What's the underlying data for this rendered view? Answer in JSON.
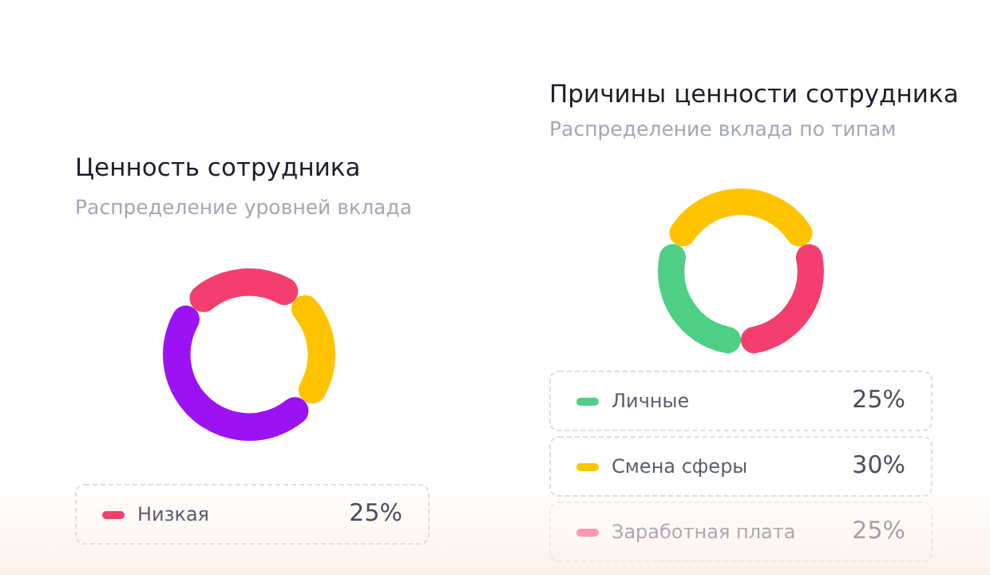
{
  "chart_data": [
    {
      "type": "donut",
      "title": "Ценность сотрудника",
      "subtitle": "Распределение уровней вклада",
      "categories": [
        "Низкая",
        null,
        null
      ],
      "values": [
        25,
        25,
        50
      ],
      "colors": [
        "#f43f6e",
        "#ffc300",
        "#9b12f5"
      ],
      "value_labels": [
        "25%",
        null,
        null
      ],
      "legend": "bottom"
    },
    {
      "type": "donut",
      "title": "Причины ценности сотрудника",
      "subtitle": "Распределение вклада по типам",
      "categories": [
        "Личные",
        "Смена сферы",
        "Заработная плата"
      ],
      "values": [
        25,
        30,
        25
      ],
      "colors": [
        "#4fce86",
        "#ffc300",
        "#f43f6e"
      ],
      "value_labels": [
        "25%",
        "30%",
        "25%"
      ],
      "legend": "bottom"
    }
  ]
}
